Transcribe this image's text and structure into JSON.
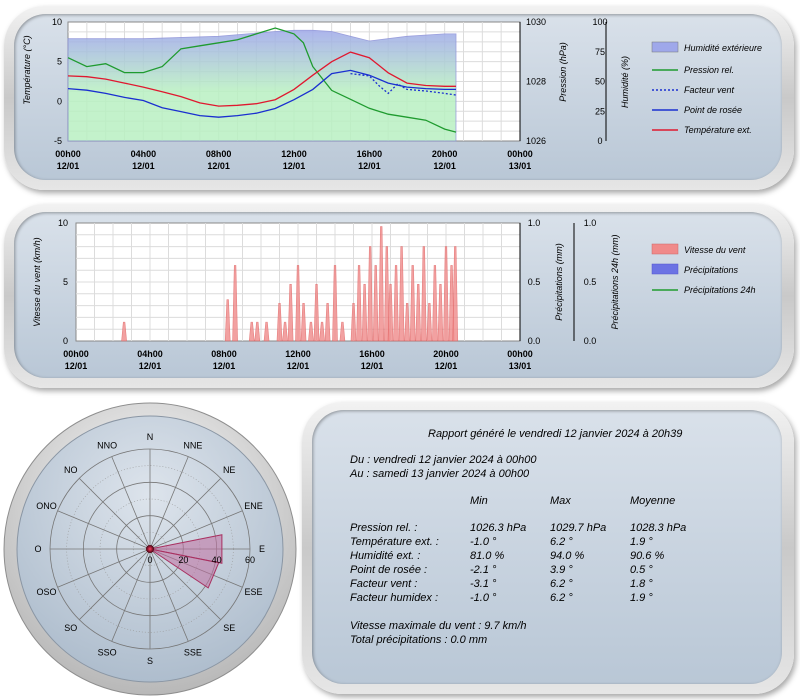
{
  "colors": {
    "humidity_fill": "#9fa8ea",
    "humidity_fill_low": "#b9f0c2",
    "pressure": "#1f9b2f",
    "wind_factor": "#1a2fd0",
    "dew_point": "#1a2fd0",
    "temperature": "#e0182f",
    "wind": "#f08a8a",
    "precip": "#6c73e4",
    "precip24": "#1f9b2f"
  },
  "chart_data": [
    {
      "type": "line",
      "time_ticks": [
        "00h00",
        "04h00",
        "08h00",
        "12h00",
        "16h00",
        "20h00",
        "00h00"
      ],
      "date_ticks": [
        "12/01",
        "12/01",
        "12/01",
        "12/01",
        "12/01",
        "12/01",
        "13/01"
      ],
      "y1": {
        "label": "Température (°C)",
        "ticks": [
          "10",
          "5",
          "0",
          "-5"
        ],
        "range": [
          -5,
          10
        ]
      },
      "y2": {
        "label": "Pression (hPa)",
        "ticks": [
          "1030",
          "1028",
          "1026"
        ],
        "range": [
          1026,
          1030
        ]
      },
      "y3": {
        "label": "Humidité (%)",
        "ticks": [
          "100",
          "75",
          "50",
          "25",
          "0"
        ],
        "range": [
          0,
          100
        ]
      },
      "series": [
        {
          "name": "Humidité extérieure",
          "axis": "y3",
          "x": [
            0,
            4,
            8,
            11,
            12,
            13,
            14,
            15,
            16,
            18,
            20,
            20.6
          ],
          "values": [
            86,
            86,
            88,
            92,
            93,
            93,
            92,
            88,
            84,
            88,
            90,
            90
          ]
        },
        {
          "name": "Pression rel.",
          "axis": "y2",
          "x": [
            0,
            1,
            2,
            3,
            4,
            5,
            6,
            7,
            8,
            9,
            10,
            11,
            11.5,
            12,
            12.5,
            13,
            14,
            15,
            16,
            17,
            18,
            19,
            20,
            20.6
          ],
          "values": [
            1028.8,
            1028.5,
            1028.6,
            1028.3,
            1028.3,
            1028.5,
            1029.1,
            1029.2,
            1029.3,
            1029.4,
            1029.6,
            1029.8,
            1029.7,
            1029.6,
            1029.3,
            1028.5,
            1027.7,
            1027.4,
            1027.1,
            1026.9,
            1026.8,
            1026.7,
            1026.4,
            1026.3
          ]
        },
        {
          "name": "Facteur vent",
          "axis": "y1",
          "x": [
            15,
            16,
            16.5,
            17,
            17.5,
            18,
            19,
            20,
            20.6
          ],
          "values": [
            3.5,
            3.2,
            2,
            1,
            2.2,
            1.5,
            1.3,
            1.0,
            0.8
          ]
        },
        {
          "name": "Point de rosée",
          "axis": "y1",
          "x": [
            0,
            1,
            2,
            3,
            4,
            5,
            6,
            7,
            8,
            9,
            10,
            11,
            12,
            13,
            14,
            15,
            16,
            17,
            18,
            19,
            20,
            20.6
          ],
          "values": [
            1.6,
            1.4,
            1.0,
            0.5,
            0.1,
            -0.8,
            -1.3,
            -1.8,
            -2.0,
            -1.8,
            -1.5,
            -0.9,
            0.2,
            1.5,
            3.5,
            3.9,
            3.3,
            2.3,
            1.8,
            1.6,
            1.5,
            1.5
          ]
        },
        {
          "name": "Température ext.",
          "axis": "y1",
          "x": [
            0,
            1,
            2,
            3,
            4,
            5,
            6,
            7,
            8,
            9,
            10,
            11,
            12,
            13,
            14,
            15,
            16,
            17,
            18,
            19,
            20,
            20.6
          ],
          "values": [
            3.2,
            3.1,
            2.8,
            2.3,
            1.8,
            1.2,
            0.6,
            -0.2,
            -0.6,
            -0.5,
            -0.3,
            0.2,
            1.5,
            3.3,
            5.0,
            6.2,
            5.5,
            3.6,
            2.3,
            2.0,
            1.9,
            1.9
          ]
        }
      ]
    },
    {
      "type": "bar",
      "time_ticks": [
        "00h00",
        "04h00",
        "08h00",
        "12h00",
        "16h00",
        "20h00",
        "00h00"
      ],
      "date_ticks": [
        "12/01",
        "12/01",
        "12/01",
        "12/01",
        "12/01",
        "12/01",
        "13/01"
      ],
      "y1": {
        "label": "Vitesse du vent (km/h)",
        "ticks": [
          "10",
          "5",
          "0"
        ],
        "range": [
          0,
          10
        ]
      },
      "y2": {
        "label": "Précipitations (mm)",
        "ticks": [
          "1.0",
          "0.5",
          "0.0"
        ],
        "range": [
          0,
          1
        ]
      },
      "y3": {
        "label": "Précipitations 24h (mm)",
        "ticks": [
          "1.0",
          "0.5",
          "0.0"
        ],
        "range": [
          0,
          1
        ]
      },
      "series": [
        {
          "name": "Vitesse du vent",
          "x": [
            2.6,
            8.2,
            8.6,
            9.5,
            9.8,
            10.3,
            11.0,
            11.3,
            11.6,
            12.0,
            12.3,
            12.7,
            13.0,
            13.3,
            13.6,
            14.0,
            14.4,
            15.0,
            15.3,
            15.6,
            15.9,
            16.2,
            16.5,
            16.8,
            17.0,
            17.3,
            17.6,
            17.9,
            18.2,
            18.5,
            18.8,
            19.1,
            19.4,
            19.7,
            20.0,
            20.3,
            20.5
          ],
          "values": [
            1.6,
            3.5,
            6.4,
            1.6,
            1.6,
            1.6,
            3.2,
            1.6,
            4.8,
            6.4,
            3.2,
            1.6,
            4.8,
            1.6,
            3.2,
            6.4,
            1.6,
            3.2,
            6.4,
            4.8,
            8.0,
            6.4,
            9.7,
            8.0,
            4.8,
            6.4,
            8.0,
            3.2,
            6.4,
            4.8,
            8.0,
            3.2,
            6.4,
            4.8,
            8.0,
            6.4,
            8.0
          ]
        },
        {
          "name": "Précipitations",
          "x": [],
          "values": []
        },
        {
          "name": "Précipitations 24h",
          "x": [],
          "values": []
        }
      ]
    },
    {
      "type": "polar",
      "directions": [
        "N",
        "NNE",
        "NE",
        "ENE",
        "E",
        "ESE",
        "SE",
        "SSE",
        "S",
        "SSO",
        "SO",
        "OSO",
        "O",
        "ONO",
        "NO",
        "NNO"
      ],
      "radial_ticks": [
        "0",
        "20",
        "40",
        "60"
      ],
      "radial_max": 60,
      "sector_values": [
        0,
        0,
        0,
        0,
        44,
        42,
        0,
        0,
        0,
        0,
        0,
        0,
        0,
        0,
        0,
        0
      ]
    }
  ],
  "report": {
    "title": "Rapport généré le vendredi 12 janvier 2024 à 20h39",
    "from": "Du : vendredi 12 janvier 2024 à 00h00",
    "to": "Au : samedi 13 janvier 2024 à 00h00",
    "col_min": "Min",
    "col_max": "Max",
    "col_avg": "Moyenne",
    "rows": [
      {
        "label": "Pression rel. :",
        "min": "1026.3 hPa",
        "max": "1029.7 hPa",
        "avg": "1028.3 hPa"
      },
      {
        "label": "Température ext. :",
        "min": "-1.0 °",
        "max": "6.2 °",
        "avg": "1.9 °"
      },
      {
        "label": "Humidité ext. :",
        "min": "81.0 %",
        "max": "94.0 %",
        "avg": "90.6 %"
      },
      {
        "label": "Point de rosée :",
        "min": "-2.1 °",
        "max": "3.9 °",
        "avg": "0.5 °"
      },
      {
        "label": "Facteur vent :",
        "min": "-3.1 °",
        "max": "6.2 °",
        "avg": "1.8 °"
      },
      {
        "label": "Facteur humidex :",
        "min": "-1.0 °",
        "max": "6.2 °",
        "avg": "1.9 °"
      }
    ],
    "max_wind": "Vitesse maximale du vent : 9.7 km/h",
    "total_precip": "Total précipitations : 0.0 mm"
  }
}
